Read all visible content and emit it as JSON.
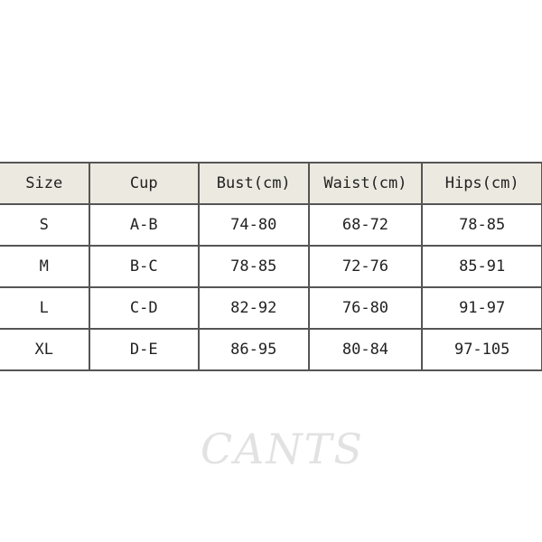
{
  "table": {
    "headers": [
      "Size",
      "Cup",
      "Bust(cm)",
      "Waist(cm)",
      "Hips(cm)"
    ],
    "rows": [
      [
        "S",
        "A-B",
        "74-80",
        "68-72",
        "78-85"
      ],
      [
        "M",
        "B-C",
        "78-85",
        "72-76",
        "85-91"
      ],
      [
        "L",
        "C-D",
        "82-92",
        "76-80",
        "91-97"
      ],
      [
        "XL",
        "D-E",
        "86-95",
        "80-84",
        "97-105"
      ]
    ]
  },
  "watermark": "CANTS",
  "colors": {
    "header_bg": "#ece9e0",
    "border": "#555555"
  }
}
